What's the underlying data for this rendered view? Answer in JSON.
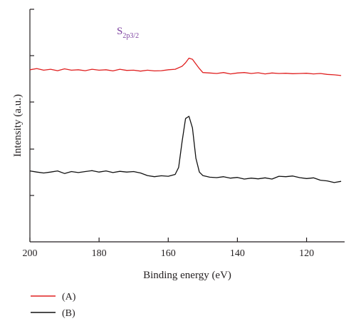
{
  "chart_data": {
    "type": "line",
    "xlabel": "Binding energy (eV)",
    "ylabel": "Intensity (a.u.)",
    "xlim": [
      200,
      109
    ],
    "x_reversed": true,
    "xticks": [
      200,
      180,
      160,
      140,
      120
    ],
    "y_tick_labels": "none",
    "grid": false,
    "legend_position": "bottom-left",
    "annotation": {
      "base": "S",
      "subscript": "2p3/2"
    },
    "series": [
      {
        "name": "(A)",
        "color": "#e02020",
        "x": [
          200,
          198,
          196,
          194,
          192,
          190,
          188,
          186,
          184,
          182,
          180,
          178,
          176,
          174,
          172,
          170,
          168,
          166,
          164,
          162,
          160,
          158,
          156,
          155,
          154,
          153,
          152,
          151,
          150,
          148,
          146,
          144,
          142,
          140,
          138,
          136,
          134,
          132,
          130,
          128,
          126,
          124,
          122,
          120,
          118,
          116,
          114,
          112,
          110
        ],
        "y": [
          0.74,
          0.745,
          0.738,
          0.742,
          0.736,
          0.744,
          0.738,
          0.74,
          0.736,
          0.742,
          0.738,
          0.74,
          0.735,
          0.742,
          0.737,
          0.738,
          0.734,
          0.738,
          0.735,
          0.736,
          0.74,
          0.742,
          0.755,
          0.77,
          0.79,
          0.785,
          0.765,
          0.745,
          0.728,
          0.726,
          0.724,
          0.728,
          0.722,
          0.726,
          0.728,
          0.724,
          0.727,
          0.722,
          0.726,
          0.724,
          0.725,
          0.723,
          0.724,
          0.725,
          0.722,
          0.724,
          0.72,
          0.718,
          0.715
        ]
      },
      {
        "name": "(B)",
        "color": "#111111",
        "x": [
          200,
          198,
          196,
          194,
          192,
          190,
          188,
          186,
          184,
          182,
          180,
          178,
          176,
          174,
          172,
          170,
          168,
          166,
          164,
          162,
          160,
          158,
          157,
          156,
          155,
          154,
          153,
          152,
          151,
          150,
          148,
          146,
          144,
          142,
          140,
          138,
          136,
          134,
          132,
          130,
          128,
          126,
          124,
          122,
          120,
          118,
          116,
          114,
          112,
          110
        ],
        "y": [
          0.305,
          0.3,
          0.296,
          0.3,
          0.305,
          0.294,
          0.302,
          0.298,
          0.302,
          0.306,
          0.3,
          0.305,
          0.298,
          0.303,
          0.3,
          0.302,
          0.296,
          0.285,
          0.28,
          0.284,
          0.282,
          0.29,
          0.32,
          0.43,
          0.53,
          0.54,
          0.49,
          0.36,
          0.3,
          0.285,
          0.278,
          0.276,
          0.28,
          0.274,
          0.277,
          0.27,
          0.274,
          0.271,
          0.275,
          0.27,
          0.282,
          0.28,
          0.283,
          0.276,
          0.272,
          0.275,
          0.265,
          0.262,
          0.255,
          0.26
        ]
      }
    ]
  }
}
